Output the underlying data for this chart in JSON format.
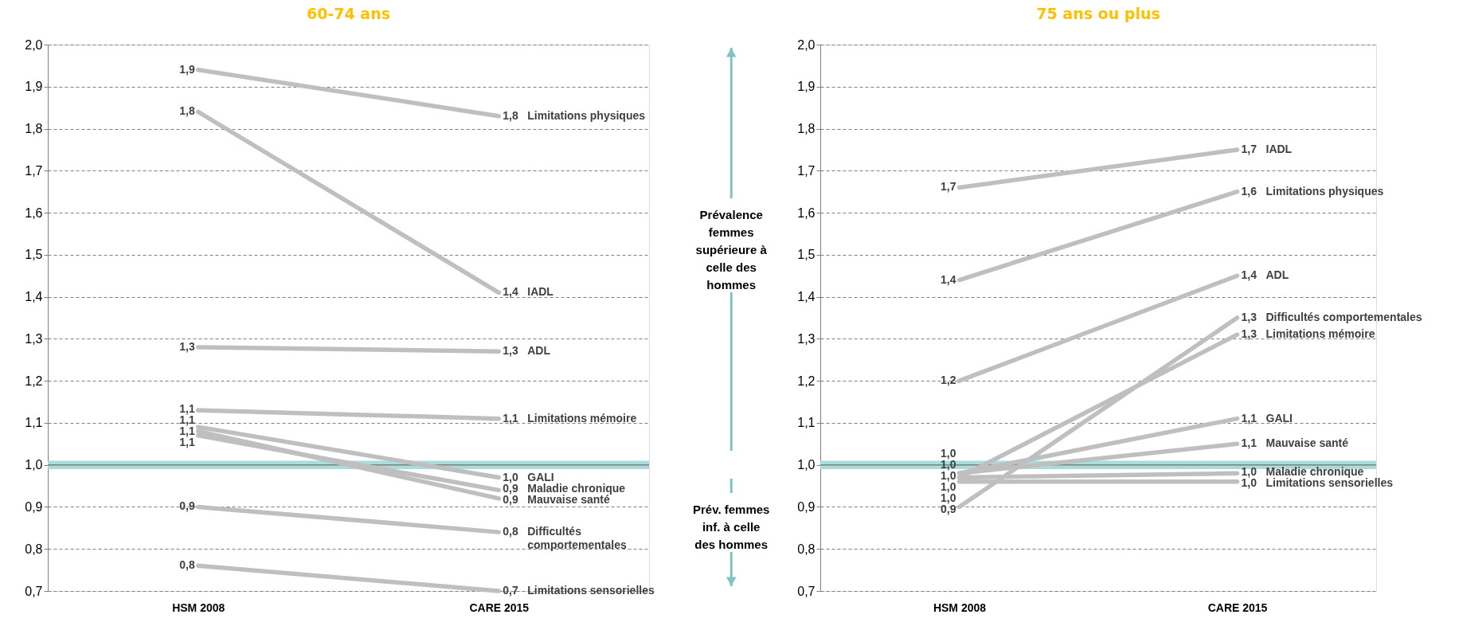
{
  "chart_data": [
    {
      "type": "line",
      "title": "60-74 ans",
      "categories": [
        "HSM 2008",
        "CARE 2015"
      ],
      "ylim": [
        0.7,
        2.0
      ],
      "yticks": [
        {
          "value": 0.7,
          "label": "0,7"
        },
        {
          "value": 0.8,
          "label": "0,8"
        },
        {
          "value": 0.9,
          "label": "0,9"
        },
        {
          "value": 1.0,
          "label": "1,0"
        },
        {
          "value": 1.1,
          "label": "1,1"
        },
        {
          "value": 1.2,
          "label": "1,2"
        },
        {
          "value": 1.3,
          "label": "1,3"
        },
        {
          "value": 1.4,
          "label": "1,4"
        },
        {
          "value": 1.5,
          "label": "1,5"
        },
        {
          "value": 1.6,
          "label": "1,6"
        },
        {
          "value": 1.7,
          "label": "1,7"
        },
        {
          "value": 1.8,
          "label": "1,8"
        },
        {
          "value": 1.9,
          "label": "1,9"
        },
        {
          "value": 2.0,
          "label": "2,0"
        }
      ],
      "grid": "y",
      "line_style": "solid",
      "bands": [
        {
          "axis": "y",
          "from": 0.99,
          "to": 1.01,
          "color": "#a9dcdc"
        }
      ],
      "ref_lines": [
        {
          "axis": "y",
          "value": 1.0,
          "color": "#7f7f7f"
        }
      ],
      "annotations": [
        "Prévalence femmes supérieure à celle des hommes",
        "Prév. femmes inf. à celle des hommes"
      ],
      "series": [
        {
          "name": "Limitations physiques",
          "color": "#bfbfbf",
          "values": [
            1.94,
            1.83
          ],
          "value_labels": [
            "1,9",
            "1,8"
          ]
        },
        {
          "name": "IADL",
          "color": "#bfbfbf",
          "values": [
            1.84,
            1.41
          ],
          "value_labels": [
            "1,8",
            "1,4"
          ]
        },
        {
          "name": "ADL",
          "color": "#bfbfbf",
          "values": [
            1.28,
            1.27
          ],
          "value_labels": [
            "1,3",
            "1,3"
          ]
        },
        {
          "name": "Limitations mémoire",
          "color": "#bfbfbf",
          "values": [
            1.13,
            1.11
          ],
          "value_labels": [
            "1,1",
            "1,1"
          ]
        },
        {
          "name": "GALI",
          "color": "#bfbfbf",
          "values": [
            1.09,
            0.97
          ],
          "value_labels": [
            "1,1",
            "1,0"
          ]
        },
        {
          "name": "Maladie chronique",
          "color": "#bfbfbf",
          "values": [
            1.07,
            0.94
          ],
          "value_labels": [
            "1,1",
            "0,9"
          ]
        },
        {
          "name": "Mauvaise santé",
          "color": "#bfbfbf",
          "values": [
            1.08,
            0.92
          ],
          "value_labels": [
            "1,1",
            "0,9"
          ]
        },
        {
          "name": "Difficultés comportementales",
          "color": "#bfbfbf",
          "values": [
            0.9,
            0.84
          ],
          "value_labels": [
            "0,9",
            "0,8"
          ]
        },
        {
          "name": "Limitations sensorielles",
          "color": "#bfbfbf",
          "values": [
            0.76,
            0.7
          ],
          "value_labels": [
            "0,8",
            "0,7"
          ]
        }
      ]
    },
    {
      "type": "line",
      "title": "75 ans ou plus",
      "categories": [
        "HSM 2008",
        "CARE 2015"
      ],
      "ylim": [
        0.7,
        2.0
      ],
      "yticks": [
        {
          "value": 0.7,
          "label": "0,7"
        },
        {
          "value": 0.8,
          "label": "0,8"
        },
        {
          "value": 0.9,
          "label": "0,9"
        },
        {
          "value": 1.0,
          "label": "1,0"
        },
        {
          "value": 1.1,
          "label": "1,1"
        },
        {
          "value": 1.2,
          "label": "1,2"
        },
        {
          "value": 1.3,
          "label": "1,3"
        },
        {
          "value": 1.4,
          "label": "1,4"
        },
        {
          "value": 1.5,
          "label": "1,5"
        },
        {
          "value": 1.6,
          "label": "1,6"
        },
        {
          "value": 1.7,
          "label": "1,7"
        },
        {
          "value": 1.8,
          "label": "1,8"
        },
        {
          "value": 1.9,
          "label": "1,9"
        },
        {
          "value": 2.0,
          "label": "2,0"
        }
      ],
      "grid": "y",
      "line_style": "solid",
      "bands": [
        {
          "axis": "y",
          "from": 0.99,
          "to": 1.01,
          "color": "#a9dcdc"
        }
      ],
      "ref_lines": [
        {
          "axis": "y",
          "value": 1.0,
          "color": "#7f7f7f"
        }
      ],
      "series": [
        {
          "name": "IADL",
          "color": "#bfbfbf",
          "values": [
            1.66,
            1.75
          ],
          "value_labels": [
            "1,7",
            "1,7"
          ]
        },
        {
          "name": "Limitations physiques",
          "color": "#bfbfbf",
          "values": [
            1.44,
            1.65
          ],
          "value_labels": [
            "1,4",
            "1,6"
          ]
        },
        {
          "name": "ADL",
          "color": "#bfbfbf",
          "values": [
            1.2,
            1.45
          ],
          "value_labels": [
            "1,2",
            "1,4"
          ]
        },
        {
          "name": "Difficultés comportementales",
          "color": "#bfbfbf",
          "values": [
            0.9,
            1.35
          ],
          "value_labels": [
            "0,9",
            "1,3"
          ]
        },
        {
          "name": "Limitations mémoire",
          "color": "#bfbfbf",
          "values": [
            0.97,
            1.31
          ],
          "value_labels": [
            "1,0",
            "1,3"
          ]
        },
        {
          "name": "GALI",
          "color": "#bfbfbf",
          "values": [
            0.98,
            1.11
          ],
          "value_labels": [
            "1,0",
            "1,1"
          ]
        },
        {
          "name": "Mauvaise santé",
          "color": "#bfbfbf",
          "values": [
            0.98,
            1.05
          ],
          "value_labels": [
            "1,0",
            "1,1"
          ]
        },
        {
          "name": "Maladie chronique",
          "color": "#bfbfbf",
          "values": [
            0.97,
            0.98
          ],
          "value_labels": [
            "1,0",
            "1,0"
          ]
        },
        {
          "name": "Limitations sensorielles",
          "color": "#bfbfbf",
          "values": [
            0.96,
            0.96
          ],
          "value_labels": [
            "1,0",
            "1,0"
          ]
        }
      ]
    }
  ]
}
